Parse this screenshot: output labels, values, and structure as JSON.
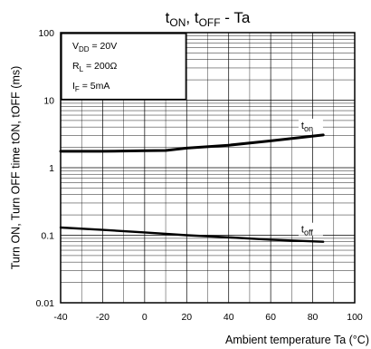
{
  "chart_data": {
    "type": "line",
    "title": {
      "base": "t",
      "sub1": "ON",
      "mid": ", t",
      "sub2": "OFF",
      "tail": " - Ta"
    },
    "xlabel": "Ambient temperature Ta (°C)",
    "ylabel": "Turn ON, Turn OFF time tON, tOFF (ms)",
    "xlim": [
      -40,
      100
    ],
    "ylim": [
      0.01,
      100
    ],
    "y_scale": "log",
    "grid": true,
    "x_ticks": [
      "-40",
      "-20",
      "0",
      "20",
      "40",
      "60",
      "80",
      "100"
    ],
    "y_ticks": [
      "0.01",
      "0.1",
      "1",
      "10",
      "100"
    ],
    "conditions": [
      {
        "base": "V",
        "sub": "DD",
        "value": " = 20V"
      },
      {
        "base": "R",
        "sub": "L",
        "value": " = 200Ω"
      },
      {
        "base": "I",
        "sub": "F",
        "value": " = 5mA"
      }
    ],
    "series": [
      {
        "name": "ton",
        "label_base": "t",
        "label_sub": "on",
        "x": [
          -40,
          -20,
          0,
          10,
          20,
          40,
          60,
          85
        ],
        "y": [
          1.75,
          1.75,
          1.78,
          1.8,
          1.95,
          2.15,
          2.5,
          3.05
        ]
      },
      {
        "name": "toff",
        "label_base": "t",
        "label_sub": "off",
        "x": [
          -40,
          -20,
          0,
          20,
          40,
          60,
          85
        ],
        "y": [
          0.13,
          0.12,
          0.11,
          0.1,
          0.093,
          0.086,
          0.08
        ]
      }
    ]
  }
}
